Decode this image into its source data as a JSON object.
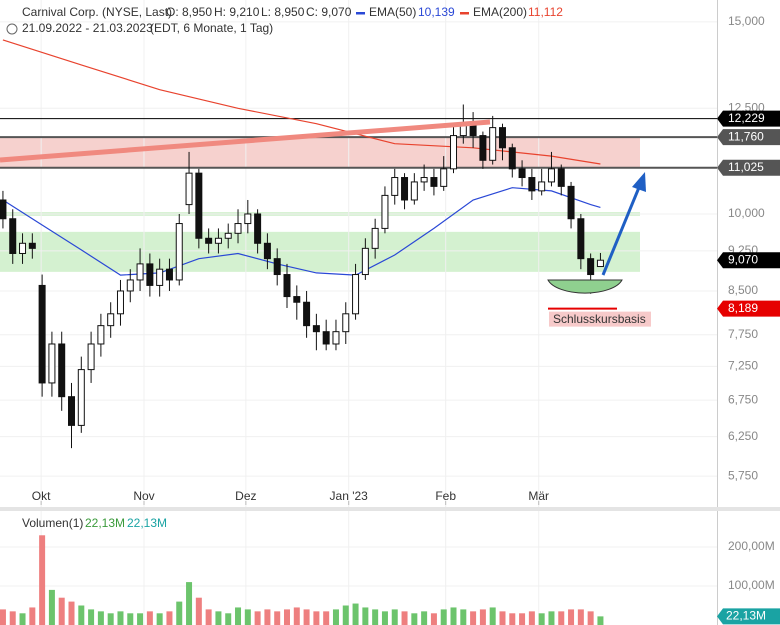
{
  "chart_data": {
    "type": "candlestick",
    "title": "Carnival Corp. (NYSE, Last)",
    "ohlc_header": [
      "O: 8,950",
      "H: 9,210",
      "L: 8,950",
      "C: 9,070"
    ],
    "period": "21.09.2022 - 21.03.2023",
    "period_note": "(EDT, 6 Monate, 1 Tag)",
    "log_scale": true,
    "grid": true,
    "xlim": [
      -0.3,
      72.9
    ],
    "xticks": [
      {
        "value": 3.9,
        "label": "Okt"
      },
      {
        "value": 14.4,
        "label": "Nov"
      },
      {
        "value": 24.8,
        "label": "Dez"
      },
      {
        "value": 35.3,
        "label": "Jan '23"
      },
      {
        "value": 45.2,
        "label": "Feb"
      },
      {
        "value": 54.7,
        "label": "Mär"
      }
    ],
    "ylim": [
      5.41,
      15.71
    ],
    "yticks": [
      {
        "value": 15,
        "label": "15,000"
      },
      {
        "value": 12.5,
        "label": "12,500"
      },
      {
        "value": 10,
        "label": "10,000"
      },
      {
        "value": 9.25,
        "label": "9,250"
      },
      {
        "value": 8.5,
        "label": "8,500"
      },
      {
        "value": 7.75,
        "label": "7,750"
      },
      {
        "value": 7.25,
        "label": "7,250"
      },
      {
        "value": 6.75,
        "label": "6,750"
      },
      {
        "value": 6.25,
        "label": "6,250"
      },
      {
        "value": 5.75,
        "label": "5,750"
      }
    ],
    "up_color": "#ffffff",
    "down_color": "#111111",
    "open": [
      10.3,
      9.9,
      9.2,
      9.4,
      8.6,
      7.0,
      7.6,
      6.8,
      6.4,
      7.2,
      7.6,
      7.9,
      8.1,
      8.5,
      8.7,
      9.0,
      8.6,
      8.9,
      8.7,
      10.2,
      10.9,
      9.5,
      9.4,
      9.5,
      9.6,
      9.8,
      10.0,
      9.4,
      9.1,
      8.8,
      8.4,
      8.3,
      7.9,
      7.8,
      7.6,
      7.8,
      8.1,
      8.8,
      9.3,
      9.7,
      10.4,
      10.8,
      10.3,
      10.7,
      10.8,
      10.6,
      11.0,
      11.8,
      12.1,
      11.8,
      11.2,
      12.0,
      11.5,
      11.0,
      10.8,
      10.5,
      10.7,
      11.0,
      10.6,
      9.9,
      9.1,
      8.95
    ],
    "high": [
      10.5,
      10.1,
      9.6,
      9.6,
      8.8,
      7.8,
      7.8,
      7.0,
      7.4,
      7.8,
      8.1,
      8.3,
      8.7,
      8.9,
      9.3,
      9.2,
      9.1,
      9.1,
      10.0,
      11.4,
      11.0,
      9.7,
      9.7,
      9.8,
      10.1,
      10.3,
      10.1,
      9.6,
      9.3,
      9.0,
      8.6,
      8.5,
      8.1,
      8.0,
      8.0,
      8.3,
      9.0,
      9.5,
      9.9,
      10.6,
      11.0,
      10.9,
      10.9,
      11.1,
      11.0,
      11.3,
      12.1,
      12.6,
      12.4,
      11.9,
      12.3,
      12.1,
      11.6,
      11.2,
      11.0,
      11.0,
      11.4,
      11.1,
      10.7,
      10.0,
      9.2,
      9.21
    ],
    "low": [
      9.7,
      9.0,
      9.0,
      9.1,
      6.8,
      6.8,
      6.6,
      6.1,
      6.3,
      7.0,
      7.4,
      7.7,
      7.9,
      8.3,
      8.5,
      8.4,
      8.4,
      8.5,
      8.6,
      10.0,
      9.3,
      9.2,
      9.2,
      9.3,
      9.4,
      9.6,
      9.2,
      8.9,
      8.6,
      8.2,
      8.0,
      7.7,
      7.5,
      7.5,
      7.5,
      7.6,
      8.0,
      8.7,
      9.1,
      9.6,
      10.2,
      10.1,
      10.2,
      10.5,
      10.4,
      10.5,
      10.9,
      11.6,
      11.5,
      11.0,
      11.1,
      11.2,
      10.8,
      10.6,
      10.3,
      10.4,
      10.6,
      10.4,
      9.7,
      8.9,
      8.45,
      8.95
    ],
    "close": [
      9.9,
      9.2,
      9.4,
      9.3,
      7.0,
      7.6,
      6.8,
      6.4,
      7.2,
      7.6,
      7.9,
      8.1,
      8.5,
      8.7,
      9.0,
      8.6,
      8.9,
      8.7,
      9.8,
      10.9,
      9.5,
      9.4,
      9.5,
      9.6,
      9.8,
      10.0,
      9.4,
      9.1,
      8.8,
      8.4,
      8.3,
      7.9,
      7.8,
      7.6,
      7.8,
      8.1,
      8.8,
      9.3,
      9.7,
      10.4,
      10.8,
      10.3,
      10.7,
      10.8,
      10.6,
      11.0,
      11.8,
      12.1,
      11.8,
      11.2,
      12.0,
      11.5,
      11.0,
      10.8,
      10.5,
      10.7,
      11.0,
      10.6,
      9.9,
      9.1,
      8.8,
      9.07
    ],
    "series": [
      {
        "name": "EMA(50)",
        "value_label": "10,139",
        "color": "#2a48d6",
        "x": [
          0,
          4,
          8,
          12,
          16,
          20,
          24,
          28,
          32,
          36,
          40,
          44,
          48,
          52,
          56,
          60,
          61
        ],
        "values": [
          10.3,
          9.77,
          9.27,
          8.79,
          8.83,
          9.1,
          9.2,
          9.0,
          8.83,
          8.79,
          9.17,
          9.7,
          10.3,
          10.57,
          10.5,
          10.2,
          10.139
        ]
      },
      {
        "name": "EMA(200)",
        "value_label": "11,112",
        "color": "#e8432e",
        "x": [
          0,
          8,
          16,
          24,
          32,
          40,
          48,
          56,
          61
        ],
        "values": [
          14.44,
          13.7,
          13.0,
          12.5,
          12.1,
          11.6,
          11.5,
          11.3,
          11.112
        ]
      }
    ],
    "last": {
      "value": 9.07,
      "label": "9,070",
      "color": "#000000"
    },
    "levels": [
      {
        "value": 12.229,
        "label": "12,229",
        "color": "#000000"
      },
      {
        "value": 11.76,
        "label": "11,760",
        "color": "#555555"
      },
      {
        "value": 11.025,
        "label": "11,025",
        "color": "#555555"
      }
    ],
    "zones": [
      {
        "from": 11.025,
        "to": 11.76,
        "color": "#f4c9c6"
      },
      {
        "from": 8.85,
        "to": 9.63,
        "color": "#cdeec8"
      },
      {
        "from": 9.96,
        "to": 10.04,
        "color": "#cdeec8"
      }
    ],
    "support": {
      "value": 8.189,
      "label": "8,189",
      "note": "Schlusskursbasis",
      "color": "#e60000"
    },
    "volume": {
      "name": "Volumen(1)",
      "value_label": "22,13M",
      "value_label_2": "22,13M",
      "up_color": "#6cc46c",
      "down_color": "#ee7f7f",
      "label_color": "#1aa3a3",
      "ylim": [
        0,
        282
      ],
      "yticks": [
        {
          "value": 100,
          "label": "100,00M"
        },
        {
          "value": 200,
          "label": "200,00M"
        }
      ],
      "values": [
        40,
        35,
        30,
        45,
        230,
        90,
        70,
        60,
        50,
        40,
        35,
        30,
        35,
        30,
        30,
        35,
        30,
        35,
        60,
        110,
        70,
        40,
        35,
        30,
        45,
        40,
        35,
        40,
        35,
        40,
        45,
        40,
        35,
        35,
        40,
        50,
        55,
        45,
        40,
        35,
        40,
        35,
        30,
        35,
        30,
        40,
        45,
        40,
        35,
        40,
        45,
        35,
        30,
        30,
        35,
        30,
        35,
        35,
        40,
        40,
        35,
        22.13
      ]
    }
  }
}
